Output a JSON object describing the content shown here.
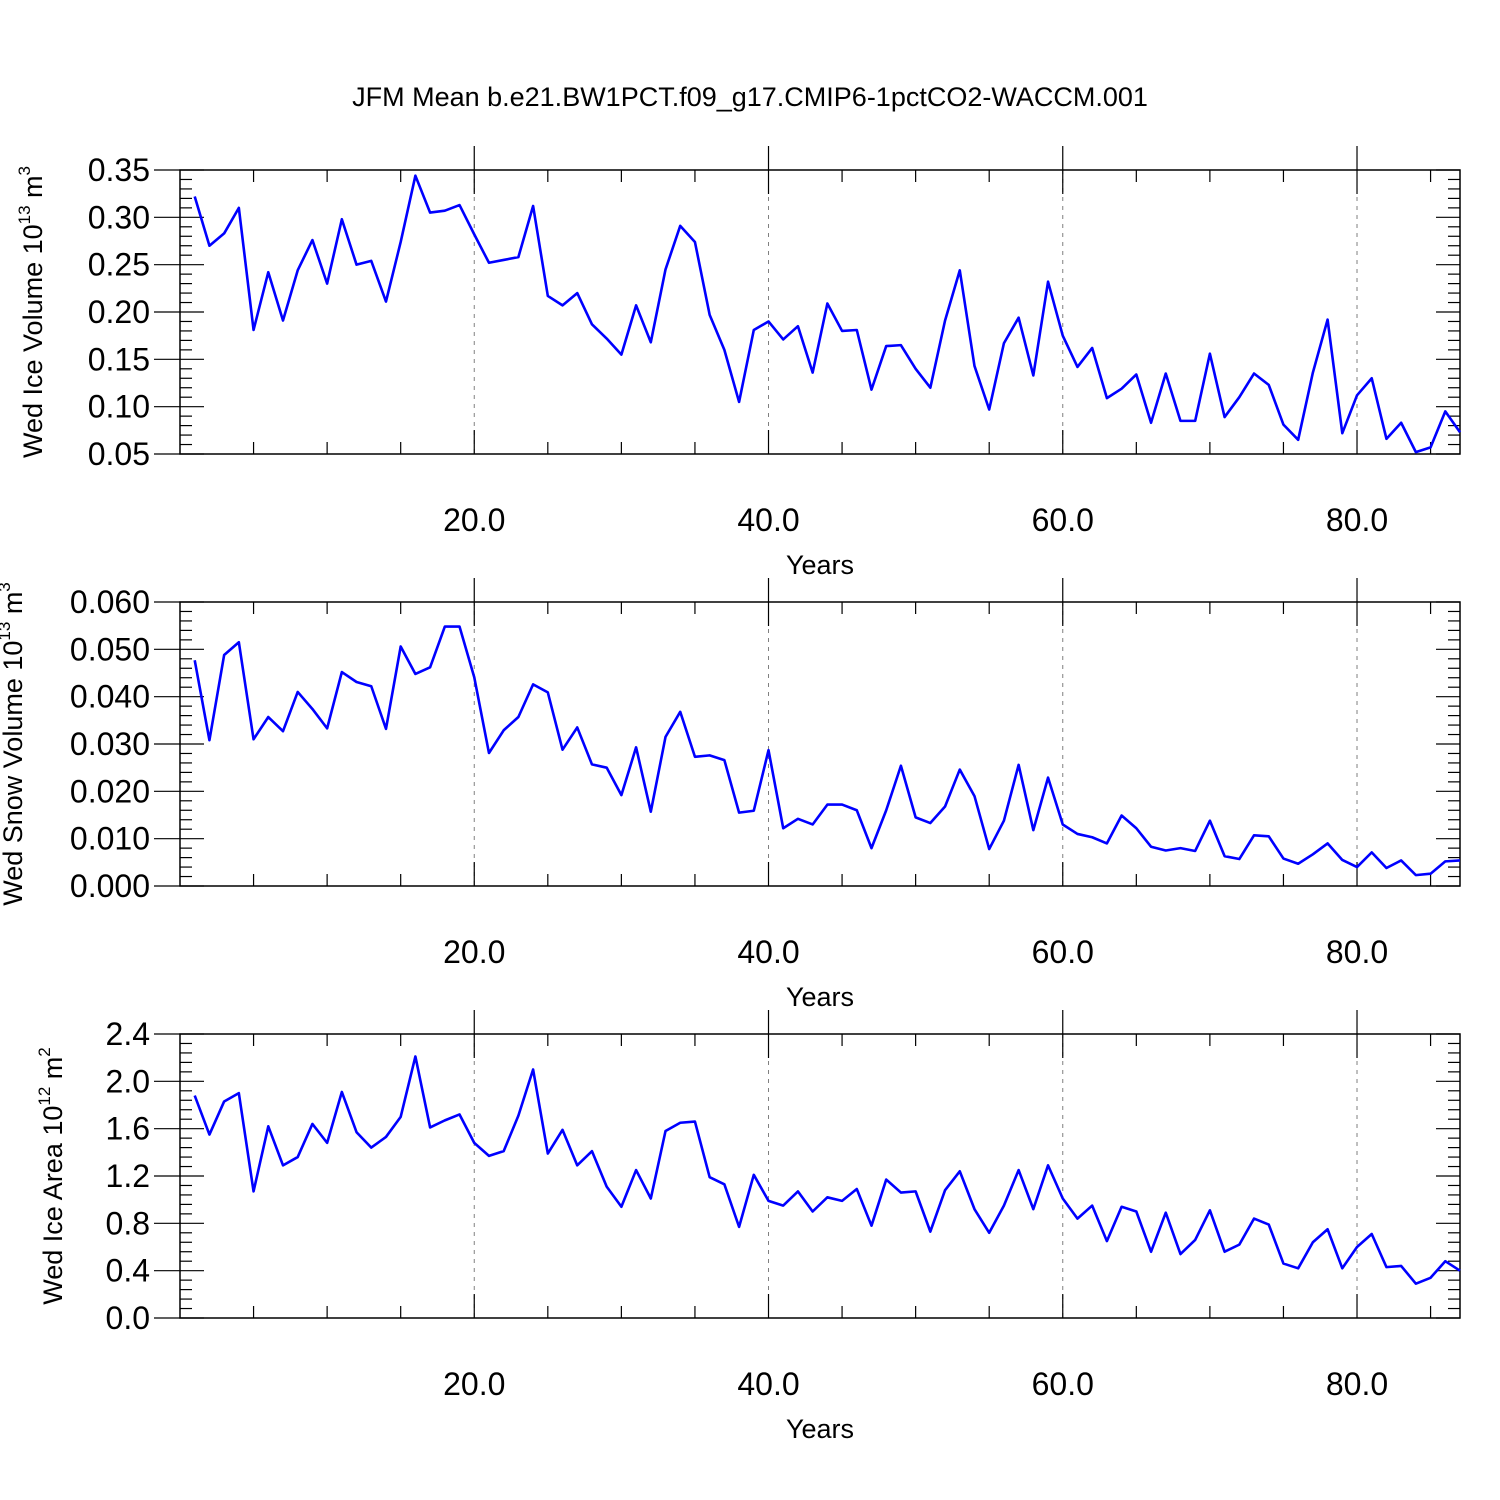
{
  "title": "JFM Mean b.e21.BW1PCT.f09_g17.CMIP6-1pctCO2-WACCM.001",
  "line_color": "#0000ff",
  "chart_data": [
    {
      "type": "line",
      "xlabel": "Years",
      "ylabel": {
        "text": "Wed Ice Volume 10",
        "sup": "13",
        "unit": " m",
        "unit_sup": "3"
      },
      "xlim": [
        0.0,
        87.0
      ],
      "ylim": [
        0.05,
        0.35
      ],
      "xticks": [
        20.0,
        40.0,
        60.0,
        80.0
      ],
      "xtick_labels": [
        "20.0",
        "40.0",
        "60.0",
        "80.0"
      ],
      "yticks": [
        0.05,
        0.1,
        0.15,
        0.2,
        0.25,
        0.3,
        0.35
      ],
      "ytick_labels": [
        "0.05",
        "0.10",
        "0.15",
        "0.20",
        "0.25",
        "0.30",
        "0.35"
      ],
      "grid": "dashed vertical at major x ticks",
      "x_start": 1,
      "values": [
        0.322,
        0.27,
        0.283,
        0.31,
        0.181,
        0.242,
        0.191,
        0.244,
        0.276,
        0.23,
        0.298,
        0.25,
        0.254,
        0.211,
        0.274,
        0.344,
        0.305,
        0.307,
        0.313,
        0.282,
        0.252,
        0.255,
        0.258,
        0.312,
        0.217,
        0.207,
        0.22,
        0.187,
        0.172,
        0.155,
        0.207,
        0.168,
        0.245,
        0.291,
        0.274,
        0.197,
        0.16,
        0.105,
        0.181,
        0.19,
        0.171,
        0.185,
        0.136,
        0.209,
        0.18,
        0.181,
        0.118,
        0.164,
        0.165,
        0.14,
        0.12,
        0.191,
        0.244,
        0.143,
        0.097,
        0.167,
        0.194,
        0.133,
        0.232,
        0.175,
        0.142,
        0.162,
        0.109,
        0.119,
        0.134,
        0.083,
        0.135,
        0.085,
        0.085,
        0.156,
        0.089,
        0.11,
        0.135,
        0.123,
        0.081,
        0.065,
        0.136,
        0.192,
        0.072,
        0.112,
        0.13,
        0.066,
        0.083,
        0.052,
        0.057,
        0.095,
        0.073
      ]
    },
    {
      "type": "line",
      "xlabel": "Years",
      "ylabel": {
        "text": "Wed Snow Volume 10",
        "sup": "13",
        "unit": " m",
        "unit_sup": "3"
      },
      "xlim": [
        0.0,
        87.0
      ],
      "ylim": [
        0.0,
        0.06
      ],
      "xticks": [
        20.0,
        40.0,
        60.0,
        80.0
      ],
      "xtick_labels": [
        "20.0",
        "40.0",
        "60.0",
        "80.0"
      ],
      "yticks": [
        0.0,
        0.01,
        0.02,
        0.03,
        0.04,
        0.05,
        0.06
      ],
      "ytick_labels": [
        "0.000",
        "0.010",
        "0.020",
        "0.030",
        "0.040",
        "0.050",
        "0.060"
      ],
      "grid": "dashed vertical at major x ticks",
      "x_start": 1,
      "values": [
        0.0477,
        0.0308,
        0.0488,
        0.0515,
        0.031,
        0.0357,
        0.0327,
        0.041,
        0.0374,
        0.0333,
        0.0452,
        0.0431,
        0.0422,
        0.0332,
        0.0506,
        0.0448,
        0.0462,
        0.0548,
        0.0548,
        0.0441,
        0.0281,
        0.0329,
        0.0357,
        0.0426,
        0.0409,
        0.0288,
        0.0335,
        0.0257,
        0.025,
        0.0192,
        0.0293,
        0.0157,
        0.0315,
        0.0368,
        0.0273,
        0.0276,
        0.0266,
        0.0155,
        0.0159,
        0.0287,
        0.0122,
        0.0142,
        0.013,
        0.0172,
        0.0172,
        0.016,
        0.008,
        0.016,
        0.0254,
        0.0145,
        0.0133,
        0.0168,
        0.0246,
        0.019,
        0.0078,
        0.0138,
        0.0256,
        0.0118,
        0.0229,
        0.013,
        0.011,
        0.0103,
        0.009,
        0.0149,
        0.0122,
        0.0083,
        0.0075,
        0.008,
        0.0074,
        0.0138,
        0.0063,
        0.0057,
        0.0107,
        0.0105,
        0.0058,
        0.0047,
        0.0067,
        0.009,
        0.0055,
        0.004,
        0.0071,
        0.0038,
        0.0054,
        0.0023,
        0.0026,
        0.0052,
        0.0054
      ]
    },
    {
      "type": "line",
      "xlabel": "Years",
      "ylabel": {
        "text": "Wed Ice Area 10",
        "sup": "12",
        "unit": " m",
        "unit_sup": "2"
      },
      "xlim": [
        0.0,
        87.0
      ],
      "ylim": [
        0.0,
        2.4
      ],
      "xticks": [
        20.0,
        40.0,
        60.0,
        80.0
      ],
      "xtick_labels": [
        "20.0",
        "40.0",
        "60.0",
        "80.0"
      ],
      "yticks": [
        0.0,
        0.4,
        0.8,
        1.2,
        1.6,
        2.0,
        2.4
      ],
      "ytick_labels": [
        "0.0",
        "0.4",
        "0.8",
        "1.2",
        "1.6",
        "2.0",
        "2.4"
      ],
      "grid": "dashed vertical at major x ticks",
      "x_start": 1,
      "values": [
        1.88,
        1.55,
        1.83,
        1.9,
        1.07,
        1.62,
        1.29,
        1.36,
        1.64,
        1.48,
        1.91,
        1.57,
        1.44,
        1.53,
        1.7,
        2.21,
        1.61,
        1.67,
        1.72,
        1.48,
        1.37,
        1.41,
        1.71,
        2.1,
        1.39,
        1.59,
        1.29,
        1.41,
        1.11,
        0.94,
        1.25,
        1.01,
        1.58,
        1.65,
        1.66,
        1.19,
        1.13,
        0.77,
        1.21,
        0.99,
        0.95,
        1.07,
        0.9,
        1.02,
        0.99,
        1.09,
        0.78,
        1.17,
        1.06,
        1.07,
        0.73,
        1.08,
        1.24,
        0.92,
        0.72,
        0.95,
        1.25,
        0.92,
        1.29,
        1.01,
        0.84,
        0.95,
        0.65,
        0.94,
        0.9,
        0.56,
        0.89,
        0.54,
        0.66,
        0.91,
        0.56,
        0.62,
        0.84,
        0.79,
        0.46,
        0.42,
        0.64,
        0.75,
        0.42,
        0.6,
        0.71,
        0.43,
        0.44,
        0.29,
        0.34,
        0.48,
        0.4
      ]
    }
  ]
}
